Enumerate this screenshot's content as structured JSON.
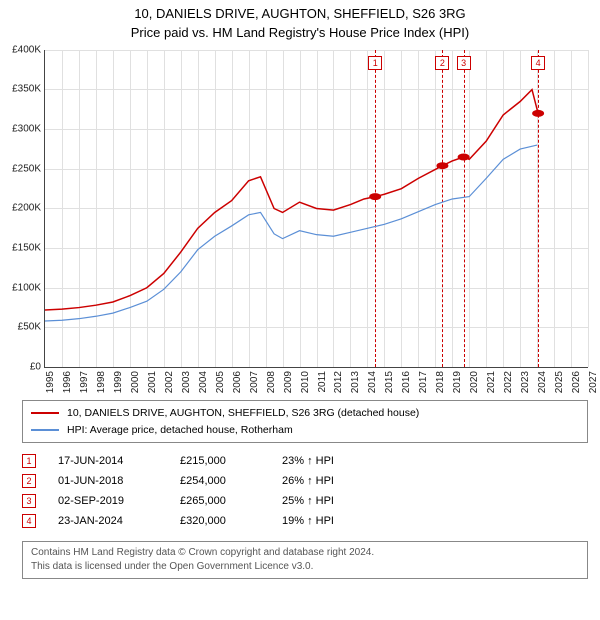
{
  "title": {
    "line1": "10, DANIELS DRIVE, AUGHTON, SHEFFIELD, S26 3RG",
    "line2": "Price paid vs. HM Land Registry's House Price Index (HPI)",
    "fontsize": 13
  },
  "chart": {
    "type": "line",
    "background_color": "#ffffff",
    "grid_color": "#e0e0e0",
    "axis_color": "#444444",
    "x": {
      "min": 1995,
      "max": 2027,
      "tick_step": 1,
      "labels": [
        "1995",
        "1996",
        "1997",
        "1998",
        "1999",
        "2000",
        "2001",
        "2002",
        "2003",
        "2004",
        "2005",
        "2006",
        "2007",
        "2008",
        "2009",
        "2010",
        "2011",
        "2012",
        "2013",
        "2014",
        "2015",
        "2016",
        "2017",
        "2018",
        "2019",
        "2020",
        "2021",
        "2022",
        "2023",
        "2024",
        "2025",
        "2026",
        "2027"
      ]
    },
    "y": {
      "min": 0,
      "max": 400000,
      "tick_step": 50000,
      "labels": [
        "£0",
        "£50K",
        "£100K",
        "£150K",
        "£200K",
        "£250K",
        "£300K",
        "£350K",
        "£400K"
      ]
    },
    "series": [
      {
        "name": "property",
        "color": "#cc0000",
        "width": 1.5,
        "points": [
          [
            1995,
            72000
          ],
          [
            1996,
            73000
          ],
          [
            1997,
            75000
          ],
          [
            1998,
            78000
          ],
          [
            1999,
            82000
          ],
          [
            2000,
            90000
          ],
          [
            2001,
            100000
          ],
          [
            2002,
            118000
          ],
          [
            2003,
            145000
          ],
          [
            2004,
            175000
          ],
          [
            2005,
            195000
          ],
          [
            2006,
            210000
          ],
          [
            2007,
            235000
          ],
          [
            2007.7,
            240000
          ],
          [
            2008.5,
            200000
          ],
          [
            2009,
            195000
          ],
          [
            2010,
            208000
          ],
          [
            2011,
            200000
          ],
          [
            2012,
            198000
          ],
          [
            2013,
            205000
          ],
          [
            2013.8,
            212000
          ],
          [
            2014.46,
            215000
          ],
          [
            2015,
            218000
          ],
          [
            2016,
            225000
          ],
          [
            2017,
            238000
          ],
          [
            2018.42,
            254000
          ],
          [
            2019,
            260000
          ],
          [
            2019.67,
            265000
          ],
          [
            2020,
            262000
          ],
          [
            2021,
            285000
          ],
          [
            2022,
            318000
          ],
          [
            2023,
            335000
          ],
          [
            2023.7,
            350000
          ],
          [
            2024.06,
            320000
          ]
        ],
        "sale_markers": [
          {
            "x": 2014.46,
            "y": 215000
          },
          {
            "x": 2018.42,
            "y": 254000
          },
          {
            "x": 2019.67,
            "y": 265000
          },
          {
            "x": 2024.06,
            "y": 320000
          }
        ]
      },
      {
        "name": "hpi",
        "color": "#5b8fd6",
        "width": 1.2,
        "points": [
          [
            1995,
            58000
          ],
          [
            1996,
            59000
          ],
          [
            1997,
            61000
          ],
          [
            1998,
            64000
          ],
          [
            1999,
            68000
          ],
          [
            2000,
            75000
          ],
          [
            2001,
            83000
          ],
          [
            2002,
            98000
          ],
          [
            2003,
            120000
          ],
          [
            2004,
            148000
          ],
          [
            2005,
            165000
          ],
          [
            2006,
            178000
          ],
          [
            2007,
            192000
          ],
          [
            2007.7,
            195000
          ],
          [
            2008.5,
            168000
          ],
          [
            2009,
            162000
          ],
          [
            2010,
            172000
          ],
          [
            2011,
            167000
          ],
          [
            2012,
            165000
          ],
          [
            2013,
            170000
          ],
          [
            2014,
            175000
          ],
          [
            2015,
            180000
          ],
          [
            2016,
            187000
          ],
          [
            2017,
            196000
          ],
          [
            2018,
            205000
          ],
          [
            2019,
            212000
          ],
          [
            2020,
            215000
          ],
          [
            2021,
            238000
          ],
          [
            2022,
            262000
          ],
          [
            2023,
            275000
          ],
          [
            2024,
            280000
          ]
        ]
      }
    ],
    "event_markers": [
      {
        "n": "1",
        "x": 2014.46
      },
      {
        "n": "2",
        "x": 2018.42
      },
      {
        "n": "3",
        "x": 2019.67
      },
      {
        "n": "4",
        "x": 2024.06
      }
    ]
  },
  "legend": {
    "items": [
      {
        "color": "#cc0000",
        "label": "10, DANIELS DRIVE, AUGHTON, SHEFFIELD, S26 3RG (detached house)"
      },
      {
        "color": "#5b8fd6",
        "label": "HPI: Average price, detached house, Rotherham"
      }
    ]
  },
  "sales": [
    {
      "n": "1",
      "date": "17-JUN-2014",
      "price": "£215,000",
      "pct": "23% ↑ HPI"
    },
    {
      "n": "2",
      "date": "01-JUN-2018",
      "price": "£254,000",
      "pct": "26% ↑ HPI"
    },
    {
      "n": "3",
      "date": "02-SEP-2019",
      "price": "£265,000",
      "pct": "25% ↑ HPI"
    },
    {
      "n": "4",
      "date": "23-JAN-2024",
      "price": "£320,000",
      "pct": "19% ↑ HPI"
    }
  ],
  "footer": {
    "line1": "Contains HM Land Registry data © Crown copyright and database right 2024.",
    "line2": "This data is licensed under the Open Government Licence v3.0."
  }
}
